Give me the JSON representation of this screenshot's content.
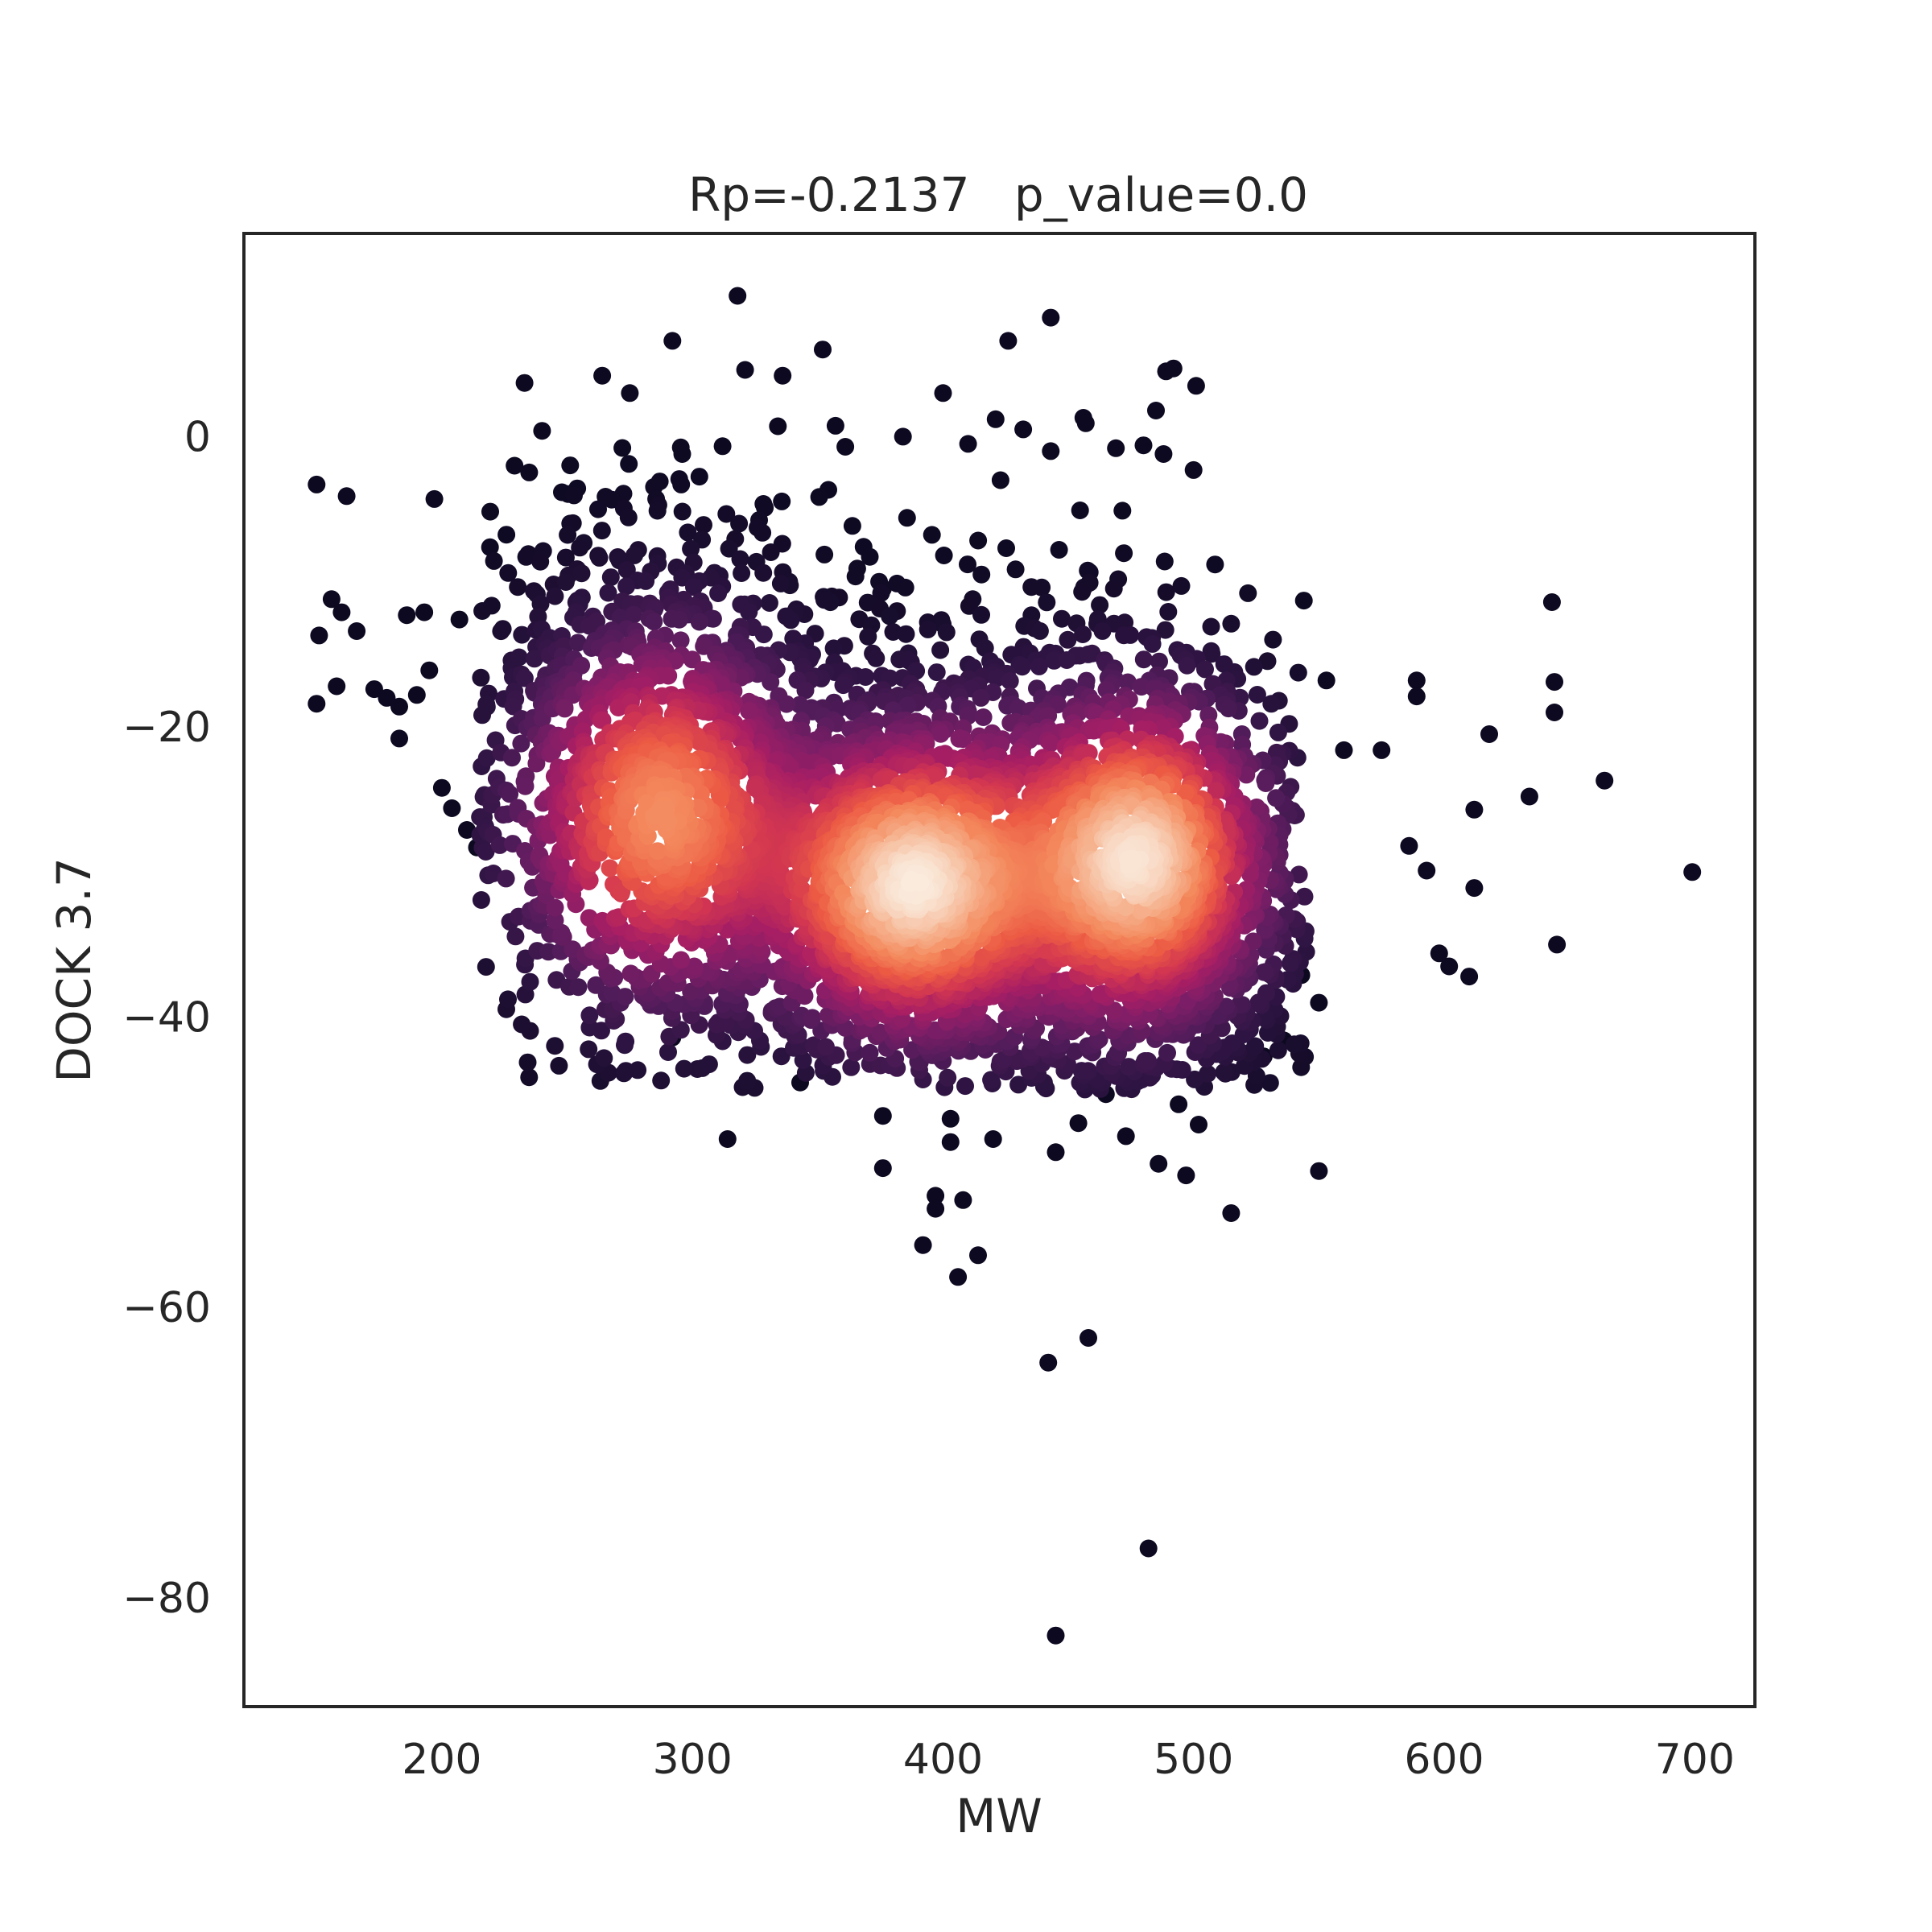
{
  "chart_data": {
    "type": "scatter",
    "title": "Rp=-0.2137   p_value=0.0",
    "xlabel": "MW",
    "ylabel": "DOCK 3.7",
    "xlim": [
      121,
      724
    ],
    "ylim": [
      -87.5,
      14
    ],
    "xticks": [
      200,
      300,
      400,
      500,
      600,
      700
    ],
    "yticks": [
      0,
      -20,
      -40,
      -60,
      -80
    ],
    "xtick_labels": [
      "200",
      "300",
      "400",
      "500",
      "600",
      "700"
    ],
    "ytick_labels": [
      "0",
      "−20",
      "−40",
      "−60",
      "−80"
    ],
    "grid": false,
    "legend": "none",
    "colormap": "rocket (density)",
    "colormap_stops": [
      "#0c0920",
      "#2d1442",
      "#531c5b",
      "#7e1e67",
      "#a71e64",
      "#d13551",
      "#ec5a44",
      "#f4885c",
      "#f6b28e",
      "#faebdd"
    ],
    "density_clusters": [
      {
        "name": "cluster-1",
        "x": 287,
        "y": -26,
        "sx": 32,
        "sy": 7,
        "weight": 0.28
      },
      {
        "name": "cluster-2",
        "x": 385,
        "y": -31,
        "sx": 30,
        "sy": 5.5,
        "weight": 0.3
      },
      {
        "name": "cluster-3",
        "x": 480,
        "y": -29,
        "sx": 27,
        "sy": 6,
        "weight": 0.3
      },
      {
        "name": "cluster-4",
        "x": 430,
        "y": -30,
        "sx": 55,
        "sy": 7,
        "weight": 0.12
      }
    ],
    "outliers": [
      [
        150,
        -3.3
      ],
      [
        162,
        -4.1
      ],
      [
        197,
        -4.3
      ],
      [
        150,
        -18.4
      ],
      [
        151,
        -13.7
      ],
      [
        156,
        -11.2
      ],
      [
        160,
        -12.1
      ],
      [
        158,
        -17.2
      ],
      [
        166,
        -13.4
      ],
      [
        173,
        -17.4
      ],
      [
        178,
        -18.0
      ],
      [
        183,
        -18.6
      ],
      [
        186,
        -12.3
      ],
      [
        190,
        -17.8
      ],
      [
        183,
        -20.8
      ],
      [
        195,
        -16.1
      ],
      [
        193,
        -12.1
      ],
      [
        200,
        -24.2
      ],
      [
        204,
        -25.6
      ],
      [
        210,
        -27.1
      ],
      [
        207,
        -12.6
      ],
      [
        214,
        -28.3
      ],
      [
        219,
        -24.9
      ],
      [
        233,
        3.7
      ],
      [
        240,
        0.4
      ],
      [
        229,
        -2.0
      ],
      [
        264,
        4.2
      ],
      [
        275,
        3.0
      ],
      [
        292,
        6.6
      ],
      [
        318,
        9.7
      ],
      [
        321,
        4.6
      ],
      [
        336,
        4.2
      ],
      [
        352,
        6.0
      ],
      [
        400,
        3.0
      ],
      [
        426,
        6.6
      ],
      [
        443,
        8.2
      ],
      [
        456,
        1.3
      ],
      [
        485,
        1.8
      ],
      [
        489,
        4.5
      ],
      [
        492,
        4.7
      ],
      [
        501,
        3.5
      ],
      [
        384,
        0.0
      ],
      [
        361,
        -0.7
      ],
      [
        410,
        -0.5
      ],
      [
        421,
        1.2
      ],
      [
        432,
        0.5
      ],
      [
        443,
        -1.0
      ],
      [
        469,
        -0.8
      ],
      [
        480,
        -0.6
      ],
      [
        488,
        -1.2
      ],
      [
        500,
        -2.3
      ],
      [
        544,
        -11.3
      ],
      [
        553,
        -16.8
      ],
      [
        560,
        -21.6
      ],
      [
        575,
        -21.6
      ],
      [
        586,
        -28.2
      ],
      [
        593,
        -29.9
      ],
      [
        598,
        -35.6
      ],
      [
        602,
        -36.5
      ],
      [
        610,
        -37.2
      ],
      [
        612,
        -25.7
      ],
      [
        612,
        -31.1
      ],
      [
        618,
        -20.5
      ],
      [
        634,
        -24.8
      ],
      [
        643,
        -11.4
      ],
      [
        644,
        -16.9
      ],
      [
        644,
        -19.0
      ],
      [
        645,
        -35.0
      ],
      [
        664,
        -23.7
      ],
      [
        699,
        -30.0
      ],
      [
        589,
        -16.8
      ],
      [
        589,
        -17.9
      ],
      [
        550,
        -39.0
      ],
      [
        543,
        -37.1
      ],
      [
        536,
        -41.6
      ],
      [
        528,
        -42.7
      ],
      [
        550,
        -50.6
      ],
      [
        515,
        -53.5
      ],
      [
        292,
        -41.4
      ],
      [
        314,
        -48.4
      ],
      [
        343,
        -44.5
      ],
      [
        376,
        -50.4
      ],
      [
        376,
        -46.8
      ],
      [
        397,
        -52.3
      ],
      [
        397,
        -53.2
      ],
      [
        392,
        -55.7
      ],
      [
        408,
        -52.6
      ],
      [
        406,
        -57.9
      ],
      [
        414,
        -56.4
      ],
      [
        403,
        -48.6
      ],
      [
        403,
        -47.0
      ],
      [
        420,
        -48.4
      ],
      [
        445,
        -49.3
      ],
      [
        454,
        -47.3
      ],
      [
        465,
        -45.3
      ],
      [
        473,
        -48.2
      ],
      [
        486,
        -50.1
      ],
      [
        497,
        -50.9
      ],
      [
        494,
        -46.0
      ],
      [
        502,
        -47.4
      ],
      [
        442,
        -63.8
      ],
      [
        458,
        -62.1
      ],
      [
        482,
        -76.6
      ],
      [
        445,
        -82.6
      ]
    ]
  }
}
